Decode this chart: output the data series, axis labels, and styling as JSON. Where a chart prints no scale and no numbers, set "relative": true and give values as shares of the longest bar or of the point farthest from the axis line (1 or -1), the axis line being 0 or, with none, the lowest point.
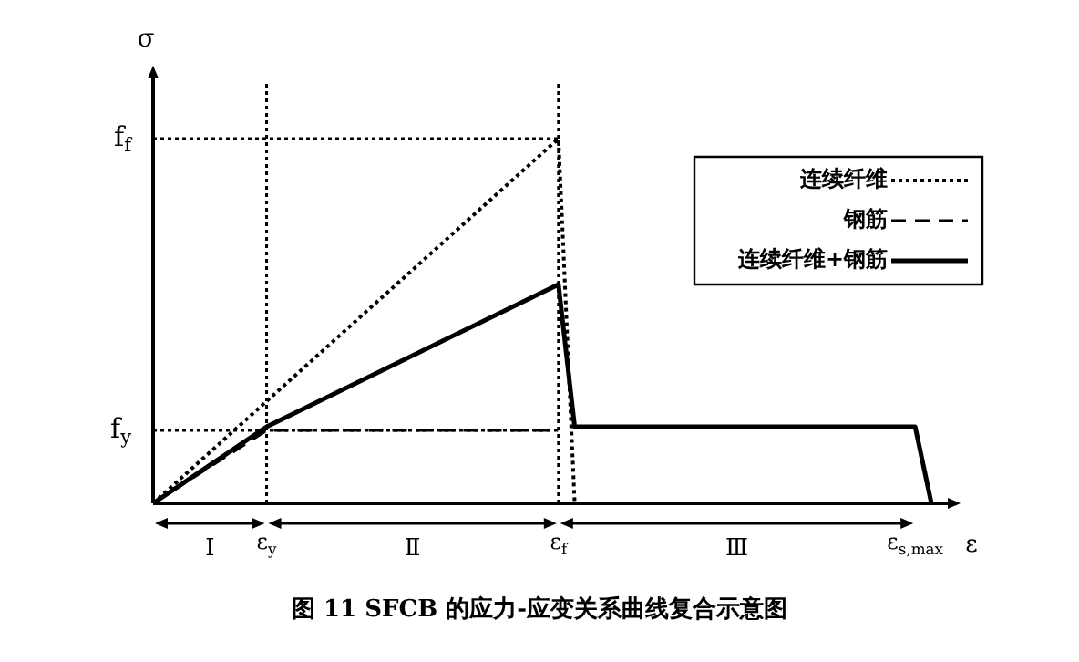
{
  "chart_data": {
    "type": "line",
    "relative": true,
    "marker": "none",
    "legend": "top right",
    "xlabel": "ε",
    "ylabel": "σ",
    "categories": [
      null,
      null,
      null,
      null,
      null,
      null,
      null,
      "ε$_{y}$",
      null,
      null,
      null,
      null,
      null,
      null,
      null,
      null,
      null,
      null,
      null,
      null,
      null,
      null,
      null,
      null,
      null,
      "ε$_{f}$",
      null,
      null,
      null,
      null,
      null,
      null,
      null,
      null,
      null,
      null,
      null,
      null,
      null,
      null,
      null,
      null,
      null,
      null,
      null,
      null,
      null,
      "ε$_{s,max}$",
      null
    ],
    "series": [
      {
        "name": "连续纤维",
        "color": "#000000",
        "line_style": "dotted",
        "values": [
          0,
          null,
          null,
          null,
          null,
          null,
          null,
          null,
          null,
          null,
          null,
          null,
          null,
          null,
          null,
          null,
          null,
          null,
          null,
          null,
          null,
          null,
          null,
          null,
          null,
          1,
          0,
          null,
          null,
          null,
          null,
          null,
          null,
          null,
          null,
          null,
          null,
          null,
          null,
          null,
          null,
          null,
          null,
          null,
          null,
          null,
          null,
          null,
          null
        ]
      },
      {
        "name": "钢筋",
        "color": "#000000",
        "line_style": "dashed",
        "values": [
          0,
          null,
          null,
          null,
          null,
          null,
          null,
          0.2,
          null,
          null,
          null,
          null,
          null,
          null,
          null,
          null,
          null,
          null,
          null,
          null,
          null,
          null,
          null,
          null,
          null,
          0.2,
          null,
          null,
          null,
          null,
          null,
          null,
          null,
          null,
          null,
          null,
          null,
          null,
          null,
          null,
          null,
          null,
          null,
          null,
          null,
          null,
          null,
          null,
          null
        ]
      },
      {
        "name": "连续纤维+钢筋",
        "color": "#000000",
        "line_style": "solid",
        "values": [
          0,
          null,
          null,
          null,
          null,
          null,
          null,
          0.21,
          null,
          null,
          null,
          null,
          null,
          null,
          null,
          null,
          null,
          null,
          null,
          null,
          null,
          null,
          null,
          null,
          null,
          0.6,
          0.21,
          null,
          null,
          null,
          null,
          null,
          null,
          null,
          null,
          null,
          null,
          null,
          null,
          null,
          null,
          null,
          null,
          null,
          null,
          null,
          null,
          0.21,
          0
        ]
      }
    ],
    "ref_lines": [
      {
        "axis": "y",
        "value": 1,
        "label": "f$_{f}$",
        "line_style": "dotted"
      },
      {
        "axis": "y",
        "value": 0.2,
        "label": "f$_{y}$",
        "line_style": "dotted"
      },
      {
        "axis": "x",
        "value": "ε$_{y}$",
        "line_style": "dotted"
      },
      {
        "axis": "x",
        "value": "ε$_{f}$",
        "line_style": "dotted"
      }
    ],
    "annotations": [
      "Ⅰ",
      "Ⅱ",
      "Ⅲ",
      "图 11 SFCB 的应力-应变关系曲线复合示意图"
    ]
  }
}
